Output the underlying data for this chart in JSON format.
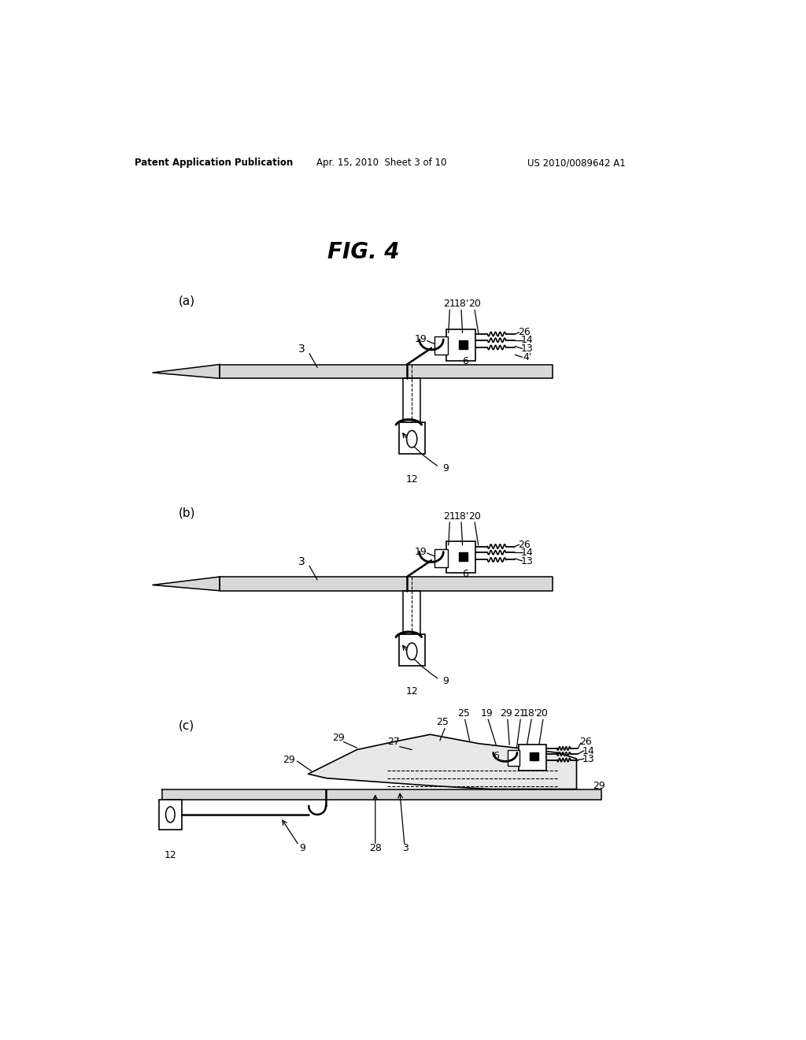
{
  "background_color": "#ffffff",
  "header_left": "Patent Application Publication",
  "header_center": "Apr. 15, 2010  Sheet 3 of 10",
  "header_right": "US 2010/0089642 A1",
  "fig_title": "FIG. 4"
}
